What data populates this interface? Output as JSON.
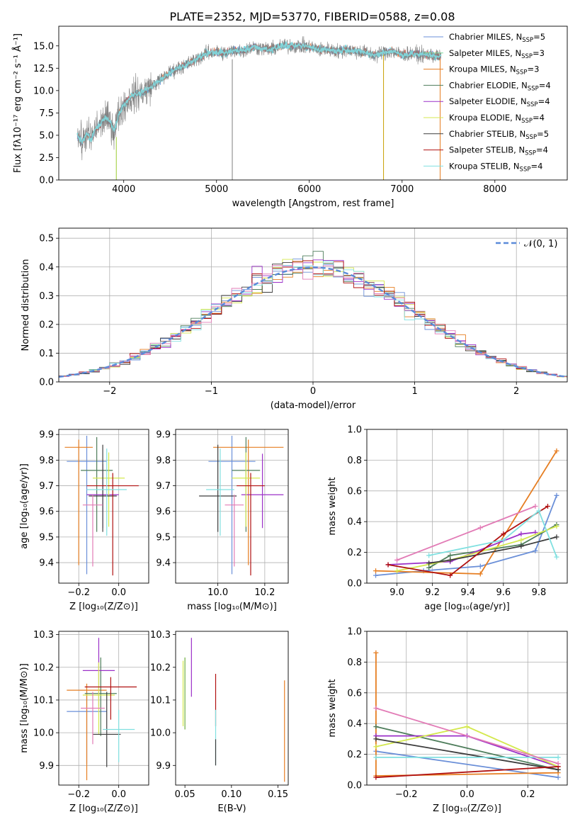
{
  "figure_title": "PLATE=2352, MJD=53770, FIBERID=0588, z=0.08",
  "chart_data": [
    {
      "id": "spectrum",
      "type": "line",
      "xlabel": "wavelength [Angstrom, rest frame]",
      "ylabel": "Flux [fλ10⁻¹⁷ erg cm⁻² s⁻¹ Å⁻¹]",
      "xlim": [
        3300,
        8780
      ],
      "ylim": [
        0,
        17.2
      ],
      "xticks": [
        4000,
        5000,
        6000,
        7000,
        8000
      ],
      "yticks": [
        0.0,
        2.5,
        5.0,
        7.5,
        10.0,
        12.5,
        15.0
      ],
      "grid": false,
      "legend_position": "right",
      "data_trace": {
        "color": "#808080",
        "x": [
          3500,
          3550,
          3600,
          3650,
          3700,
          3750,
          3800,
          3850,
          3900,
          3950,
          4000,
          4100,
          4200,
          4300,
          4400,
          4500,
          4600,
          4700,
          4800,
          4900,
          5000,
          5100,
          5200,
          5300,
          5400,
          5500,
          5600,
          5700,
          5800,
          5900,
          6000,
          6100,
          6200,
          6300,
          6400,
          6500,
          6600,
          6700,
          6800,
          6900,
          7000,
          7100,
          7200,
          7300,
          7400
        ],
        "y": [
          5.0,
          4.2,
          5.2,
          4.5,
          5.8,
          6.2,
          7.0,
          6.5,
          5.5,
          7.5,
          8.4,
          9.5,
          9.8,
          10.5,
          11.2,
          12.0,
          12.6,
          13.0,
          13.6,
          14.2,
          14.3,
          14.2,
          14.5,
          14.5,
          14.9,
          14.7,
          14.6,
          15.0,
          15.0,
          15.0,
          14.9,
          14.6,
          14.6,
          14.4,
          14.6,
          14.4,
          14.3,
          13.9,
          14.3,
          14.4,
          14.0,
          14.1,
          14.0,
          14.0,
          13.8
        ]
      },
      "spikes": [
        {
          "x": 3920,
          "from": 0.0,
          "to": 4.8,
          "color": "#9acd32"
        },
        {
          "x": 5170,
          "from": 0.0,
          "to": 13.5,
          "color": "#808080"
        },
        {
          "x": 6800,
          "from": 0.0,
          "to": 14.0,
          "color": "#c8a000"
        },
        {
          "x": 7410,
          "from": 0.0,
          "to": 13.5,
          "color": "#e67e22"
        }
      ],
      "model_tints": [
        "#5fd3dd",
        "#e8723c",
        "#6a92d8",
        "#c94f4f"
      ],
      "legend": [
        {
          "label": "Chabrier MILES, N",
          "sub": "SSP",
          "suffix": "=5",
          "color": "#6a8fd8"
        },
        {
          "label": "Salpeter MILES, N",
          "sub": "SSP",
          "suffix": "=3",
          "color": "#7bd8a0"
        },
        {
          "label": "Kroupa MILES, N",
          "sub": "SSP",
          "suffix": "=3",
          "color": "#e67e22"
        },
        {
          "label": "Chabrier ELODIE, N",
          "sub": "SSP",
          "suffix": "=4",
          "color": "#4e7d5b"
        },
        {
          "label": "Salpeter ELODIE, N",
          "sub": "SSP",
          "suffix": "=4",
          "color": "#9b30c8"
        },
        {
          "label": "Kroupa ELODIE, N",
          "sub": "SSP",
          "suffix": "=4",
          "color": "#d4e84f"
        },
        {
          "label": "Chabrier STELIB, N",
          "sub": "SSP",
          "suffix": "=5",
          "color": "#3d3d3d"
        },
        {
          "label": "Salpeter STELIB, N",
          "sub": "SSP",
          "suffix": "=4",
          "color": "#b01010"
        },
        {
          "label": "Kroupa STELIB, N",
          "sub": "SSP",
          "suffix": "=4",
          "color": "#80e0e0"
        }
      ]
    },
    {
      "id": "residuals",
      "type": "bar",
      "xlabel": "(data-model)/error",
      "ylabel": "Normed distribution",
      "xlim": [
        -2.5,
        2.5
      ],
      "ylim": [
        0,
        0.535
      ],
      "xticks": [
        -2,
        -1,
        0,
        1,
        2
      ],
      "yticks": [
        0.0,
        0.1,
        0.2,
        0.3,
        0.4,
        0.5
      ],
      "grid": true,
      "legend_position": "top-right",
      "bin_width": 0.1,
      "bin_start": -2.5,
      "series_colors": [
        "#6a8fd8",
        "#e67e22",
        "#4e7d5b",
        "#9b30c8",
        "#d4e84f",
        "#3d3d3d",
        "#b01010",
        "#80e0e0",
        "#e27bb6"
      ],
      "normal_curve": {
        "label": "𝒩(0, 1)",
        "color": "#5b8bd9",
        "mu": 0,
        "sigma": 1
      }
    },
    {
      "id": "age-vs-Z",
      "type": "scatter",
      "xlabel": "Z [log₁₀(Z/Z⊙)]",
      "ylabel": "age  [log₁₀(age/yr)]",
      "xlim": [
        -0.3,
        0.15
      ],
      "ylim": [
        9.32,
        9.92
      ],
      "xticks": [
        -0.2,
        0.0
      ],
      "yticks": [
        9.4,
        9.5,
        9.6,
        9.7,
        9.8,
        9.9
      ],
      "grid": true,
      "points": [
        {
          "x": -0.16,
          "y": 9.795,
          "xerr": 0.1,
          "yerr_lo": 0.44,
          "yerr_hi": 0.1,
          "color": "#6a8fd8"
        },
        {
          "x": -0.2,
          "y": 9.85,
          "xerr": 0.07,
          "yerr_lo": 0.46,
          "yerr_hi": 0.03,
          "color": "#e67e22"
        },
        {
          "x": -0.11,
          "y": 9.76,
          "xerr": 0.08,
          "yerr_lo": 0.24,
          "yerr_hi": 0.13,
          "color": "#4e7d5b"
        },
        {
          "x": -0.08,
          "y": 9.665,
          "xerr": 0.08,
          "yerr_lo": 0.13,
          "yerr_hi": 0.12,
          "color": "#9b30c8"
        },
        {
          "x": -0.05,
          "y": 9.73,
          "xerr": 0.08,
          "yerr_lo": 0.19,
          "yerr_hi": 0.1,
          "color": "#d4e84f"
        },
        {
          "x": -0.08,
          "y": 9.66,
          "xerr": 0.07,
          "yerr_lo": 0.14,
          "yerr_hi": 0.2,
          "color": "#3d3d3d"
        },
        {
          "x": -0.03,
          "y": 9.7,
          "xerr": 0.13,
          "yerr_lo": 0.35,
          "yerr_hi": 0.05,
          "color": "#b01010"
        },
        {
          "x": -0.06,
          "y": 9.685,
          "xerr": 0.1,
          "yerr_lo": 0.18,
          "yerr_hi": 0.16,
          "color": "#80e0e0"
        },
        {
          "x": -0.13,
          "y": 9.625,
          "xerr": 0.05,
          "yerr_lo": 0.24,
          "yerr_hi": 0.04,
          "color": "#e27bb6"
        }
      ]
    },
    {
      "id": "age-vs-mass",
      "type": "scatter",
      "xlabel": "mass [log₁₀(M/M⊙)]",
      "ylabel": "",
      "xlim": [
        9.82,
        10.3
      ],
      "ylim": [
        9.32,
        9.92
      ],
      "xticks": [
        10.0,
        10.2
      ],
      "yticks": [
        9.4,
        9.5,
        9.6,
        9.7,
        9.8,
        9.9
      ],
      "grid": true,
      "points": [
        {
          "x": 10.06,
          "y": 9.795,
          "xerr": 0.1,
          "yerr_lo": 0.44,
          "yerr_hi": 0.1,
          "color": "#6a8fd8"
        },
        {
          "x": 10.13,
          "y": 9.85,
          "xerr": 0.15,
          "yerr_lo": 0.46,
          "yerr_hi": 0.03,
          "color": "#e67e22"
        },
        {
          "x": 10.12,
          "y": 9.76,
          "xerr": 0.06,
          "yerr_lo": 0.24,
          "yerr_hi": 0.13,
          "color": "#4e7d5b"
        },
        {
          "x": 10.19,
          "y": 9.665,
          "xerr": 0.09,
          "yerr_lo": 0.13,
          "yerr_hi": 0.16,
          "color": "#9b30c8"
        },
        {
          "x": 10.12,
          "y": 9.73,
          "xerr": 0.06,
          "yerr_lo": 0.19,
          "yerr_hi": 0.1,
          "color": "#d4e84f"
        },
        {
          "x": 10.0,
          "y": 9.66,
          "xerr": 0.08,
          "yerr_lo": 0.14,
          "yerr_hi": 0.2,
          "color": "#3d3d3d"
        },
        {
          "x": 10.14,
          "y": 9.7,
          "xerr": 0.06,
          "yerr_lo": 0.35,
          "yerr_hi": 0.05,
          "color": "#b01010"
        },
        {
          "x": 10.01,
          "y": 9.685,
          "xerr": 0.06,
          "yerr_lo": 0.18,
          "yerr_hi": 0.16,
          "color": "#80e0e0"
        },
        {
          "x": 10.07,
          "y": 9.625,
          "xerr": 0.04,
          "yerr_lo": 0.24,
          "yerr_hi": 0.04,
          "color": "#e27bb6"
        }
      ]
    },
    {
      "id": "weight-vs-age",
      "type": "line",
      "xlabel": "age  [log₁₀(age/yr)]",
      "ylabel": "mass weight",
      "xlim": [
        8.83,
        9.96
      ],
      "ylim": [
        0,
        1.0
      ],
      "xticks": [
        9.0,
        9.2,
        9.4,
        9.6,
        9.8
      ],
      "yticks": [
        0.0,
        0.2,
        0.4,
        0.6,
        0.8,
        1.0
      ],
      "grid": true,
      "series": [
        {
          "color": "#6a8fd8",
          "x": [
            8.88,
            9.15,
            9.47,
            9.78,
            9.9
          ],
          "y": [
            0.05,
            0.08,
            0.11,
            0.21,
            0.57
          ]
        },
        {
          "color": "#e67e22",
          "x": [
            8.88,
            9.47,
            9.9
          ],
          "y": [
            0.08,
            0.06,
            0.86
          ]
        },
        {
          "color": "#4e7d5b",
          "x": [
            9.18,
            9.3,
            9.7,
            9.9
          ],
          "y": [
            0.1,
            0.18,
            0.25,
            0.38
          ]
        },
        {
          "color": "#9b30c8",
          "x": [
            8.95,
            9.3,
            9.7,
            9.78
          ],
          "y": [
            0.12,
            0.14,
            0.32,
            0.33
          ]
        },
        {
          "color": "#d4e84f",
          "x": [
            9.0,
            9.3,
            9.7,
            9.9
          ],
          "y": [
            0.08,
            0.15,
            0.28,
            0.37
          ]
        },
        {
          "color": "#3d3d3d",
          "x": [
            9.18,
            9.3,
            9.7,
            9.9
          ],
          "y": [
            0.13,
            0.15,
            0.24,
            0.3
          ]
        },
        {
          "color": "#b01010",
          "x": [
            8.95,
            9.3,
            9.6,
            9.85
          ],
          "y": [
            0.12,
            0.05,
            0.32,
            0.5
          ]
        },
        {
          "color": "#80e0e0",
          "x": [
            9.18,
            9.6,
            9.8,
            9.9
          ],
          "y": [
            0.18,
            0.28,
            0.47,
            0.17
          ]
        },
        {
          "color": "#e27bb6",
          "x": [
            9.0,
            9.47,
            9.78
          ],
          "y": [
            0.15,
            0.36,
            0.5
          ]
        }
      ]
    },
    {
      "id": "mass-vs-Z",
      "type": "scatter",
      "xlabel": "Z [log₁₀(Z/Z⊙)]",
      "ylabel": "mass [log₁₀(M/M⊙)]",
      "xlim": [
        -0.3,
        0.15
      ],
      "ylim": [
        9.84,
        10.31
      ],
      "xticks": [
        -0.2,
        0.0
      ],
      "yticks": [
        9.9,
        10.0,
        10.1,
        10.2,
        10.3
      ],
      "grid": true,
      "points": [
        {
          "x": -0.16,
          "y": 10.065,
          "xerr": 0.1,
          "yerr_lo": 0.16,
          "yerr_hi": 0.06,
          "color": "#6a8fd8"
        },
        {
          "x": -0.16,
          "y": 10.13,
          "xerr": 0.1,
          "yerr_lo": 0.275,
          "yerr_hi": 0.02,
          "color": "#e67e22"
        },
        {
          "x": -0.09,
          "y": 10.12,
          "xerr": 0.08,
          "yerr_lo": 0.13,
          "yerr_hi": 0.11,
          "color": "#4e7d5b"
        },
        {
          "x": -0.1,
          "y": 10.19,
          "xerr": 0.08,
          "yerr_lo": 0.11,
          "yerr_hi": 0.1,
          "color": "#9b30c8"
        },
        {
          "x": -0.1,
          "y": 10.115,
          "xerr": 0.08,
          "yerr_lo": 0.12,
          "yerr_hi": 0.1,
          "color": "#d4e84f"
        },
        {
          "x": -0.06,
          "y": 9.995,
          "xerr": 0.07,
          "yerr_lo": 0.1,
          "yerr_hi": 0.13,
          "color": "#3d3d3d"
        },
        {
          "x": -0.04,
          "y": 10.14,
          "xerr": 0.13,
          "yerr_lo": 0.1,
          "yerr_hi": 0.03,
          "color": "#b01010"
        },
        {
          "x": 0.0,
          "y": 10.01,
          "xerr": 0.08,
          "yerr_lo": 0.1,
          "yerr_hi": 0.06,
          "color": "#80e0e0"
        },
        {
          "x": -0.13,
          "y": 10.075,
          "xerr": 0.06,
          "yerr_lo": 0.11,
          "yerr_hi": 0.05,
          "color": "#e27bb6"
        }
      ]
    },
    {
      "id": "mass-vs-EBV",
      "type": "scatter",
      "xlabel": "E(B-V)",
      "ylabel": "",
      "xlim": [
        0.04,
        0.161
      ],
      "ylim": [
        9.84,
        10.31
      ],
      "xticks": [
        0.05,
        0.1,
        0.15
      ],
      "yticks": [
        9.9,
        10.0,
        10.1,
        10.2,
        10.3
      ],
      "grid": false,
      "points": [
        {
          "x": 0.048,
          "y": 10.12,
          "yerr_lo": 0.1,
          "yerr_hi": 0.1,
          "color": "#d4e84f"
        },
        {
          "x": 0.05,
          "y": 10.11,
          "yerr_lo": 0.1,
          "yerr_hi": 0.12,
          "color": "#6fae3f"
        },
        {
          "x": 0.057,
          "y": 10.2,
          "yerr_lo": 0.09,
          "yerr_hi": 0.09,
          "color": "#9b30c8"
        },
        {
          "x": 0.083,
          "y": 10.1,
          "yerr_lo": 0.08,
          "yerr_hi": 0.08,
          "color": "#b01010"
        },
        {
          "x": 0.083,
          "y": 10.0,
          "yerr_lo": 0.1,
          "yerr_hi": 0.07,
          "color": "#80e0e0"
        },
        {
          "x": 0.083,
          "y": 9.95,
          "yerr_lo": 0.05,
          "yerr_hi": 0.03,
          "color": "#3d3d3d"
        },
        {
          "x": 0.157,
          "y": 10.0,
          "yerr_lo": 0.15,
          "yerr_hi": 0.16,
          "color": "#e67e22"
        }
      ]
    },
    {
      "id": "weight-vs-Z",
      "type": "line",
      "xlabel": "Z [log₁₀(Z/Z⊙)]",
      "ylabel": "mass weight",
      "xlim": [
        -0.33,
        0.33
      ],
      "ylim": [
        0,
        1.0
      ],
      "xticks": [
        -0.2,
        0.0,
        0.2
      ],
      "yticks": [
        0.0,
        0.2,
        0.4,
        0.6,
        0.8,
        1.0
      ],
      "grid": true,
      "series": [
        {
          "color": "#6a8fd8",
          "x": [
            -0.3,
            0.3
          ],
          "y": [
            0.22,
            0.05
          ]
        },
        {
          "color": "#e67e22",
          "x": [
            -0.3,
            -0.3,
            0.3
          ],
          "y": [
            0.86,
            0.06,
            0.08
          ]
        },
        {
          "color": "#4e7d5b",
          "x": [
            -0.3,
            0.3
          ],
          "y": [
            0.38,
            0.1
          ]
        },
        {
          "color": "#9b30c8",
          "x": [
            -0.3,
            0.0,
            0.3
          ],
          "y": [
            0.32,
            0.32,
            0.12
          ]
        },
        {
          "color": "#d4e84f",
          "x": [
            -0.3,
            0.0,
            0.3
          ],
          "y": [
            0.25,
            0.38,
            0.12
          ]
        },
        {
          "color": "#3d3d3d",
          "x": [
            -0.3,
            0.3
          ],
          "y": [
            0.3,
            0.1
          ]
        },
        {
          "color": "#b01010",
          "x": [
            -0.3,
            0.3
          ],
          "y": [
            0.05,
            0.12
          ]
        },
        {
          "color": "#80e0e0",
          "x": [
            -0.3,
            0.3
          ],
          "y": [
            0.18,
            0.18
          ]
        },
        {
          "color": "#e27bb6",
          "x": [
            -0.3,
            0.3
          ],
          "y": [
            0.5,
            0.14
          ]
        }
      ]
    }
  ]
}
